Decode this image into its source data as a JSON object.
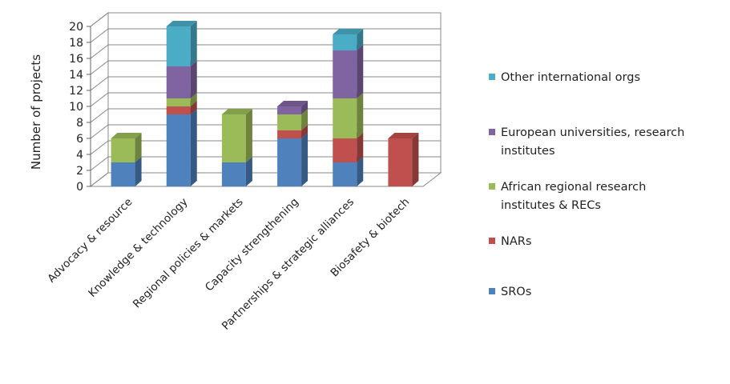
{
  "chart_data": {
    "type": "bar",
    "stacked": true,
    "three_d": true,
    "title": "",
    "xlabel": "",
    "ylabel": "Number of projects",
    "ylim": [
      0,
      20
    ],
    "yticks": [
      "0",
      "2",
      "4",
      "6",
      "8",
      "10",
      "12",
      "14",
      "16",
      "18",
      "20"
    ],
    "grid": true,
    "legend_position": "right",
    "categories": [
      "Advocacy & resource",
      "Knowledge & technology",
      "Regional policies & markets",
      "Capacity strengthening",
      "Partnerships & strategic alliances",
      "Biosafety & biotech"
    ],
    "series": [
      {
        "name": "SROs",
        "color": "#4F81BD",
        "values": [
          3,
          9,
          3,
          6,
          3,
          0
        ]
      },
      {
        "name": "NARs",
        "color": "#C0504D",
        "values": [
          0,
          1,
          0,
          1,
          3,
          6
        ]
      },
      {
        "name": "African regional research institutes & RECs",
        "color": "#9BBB59",
        "values": [
          3,
          1,
          6,
          2,
          5,
          0
        ]
      },
      {
        "name": "European universities, research institutes",
        "color": "#8064A2",
        "values": [
          0,
          4,
          0,
          1,
          6,
          0
        ]
      },
      {
        "name": "Other international orgs",
        "color": "#4BACC6",
        "values": [
          0,
          5,
          0,
          0,
          2,
          0
        ]
      }
    ],
    "legend_lines": [
      [
        "Other international orgs"
      ],
      [
        "European universities, research",
        "institutes"
      ],
      [
        "African regional research",
        "institutes & RECs"
      ],
      [
        "NARs"
      ],
      [
        "SROs"
      ]
    ]
  }
}
